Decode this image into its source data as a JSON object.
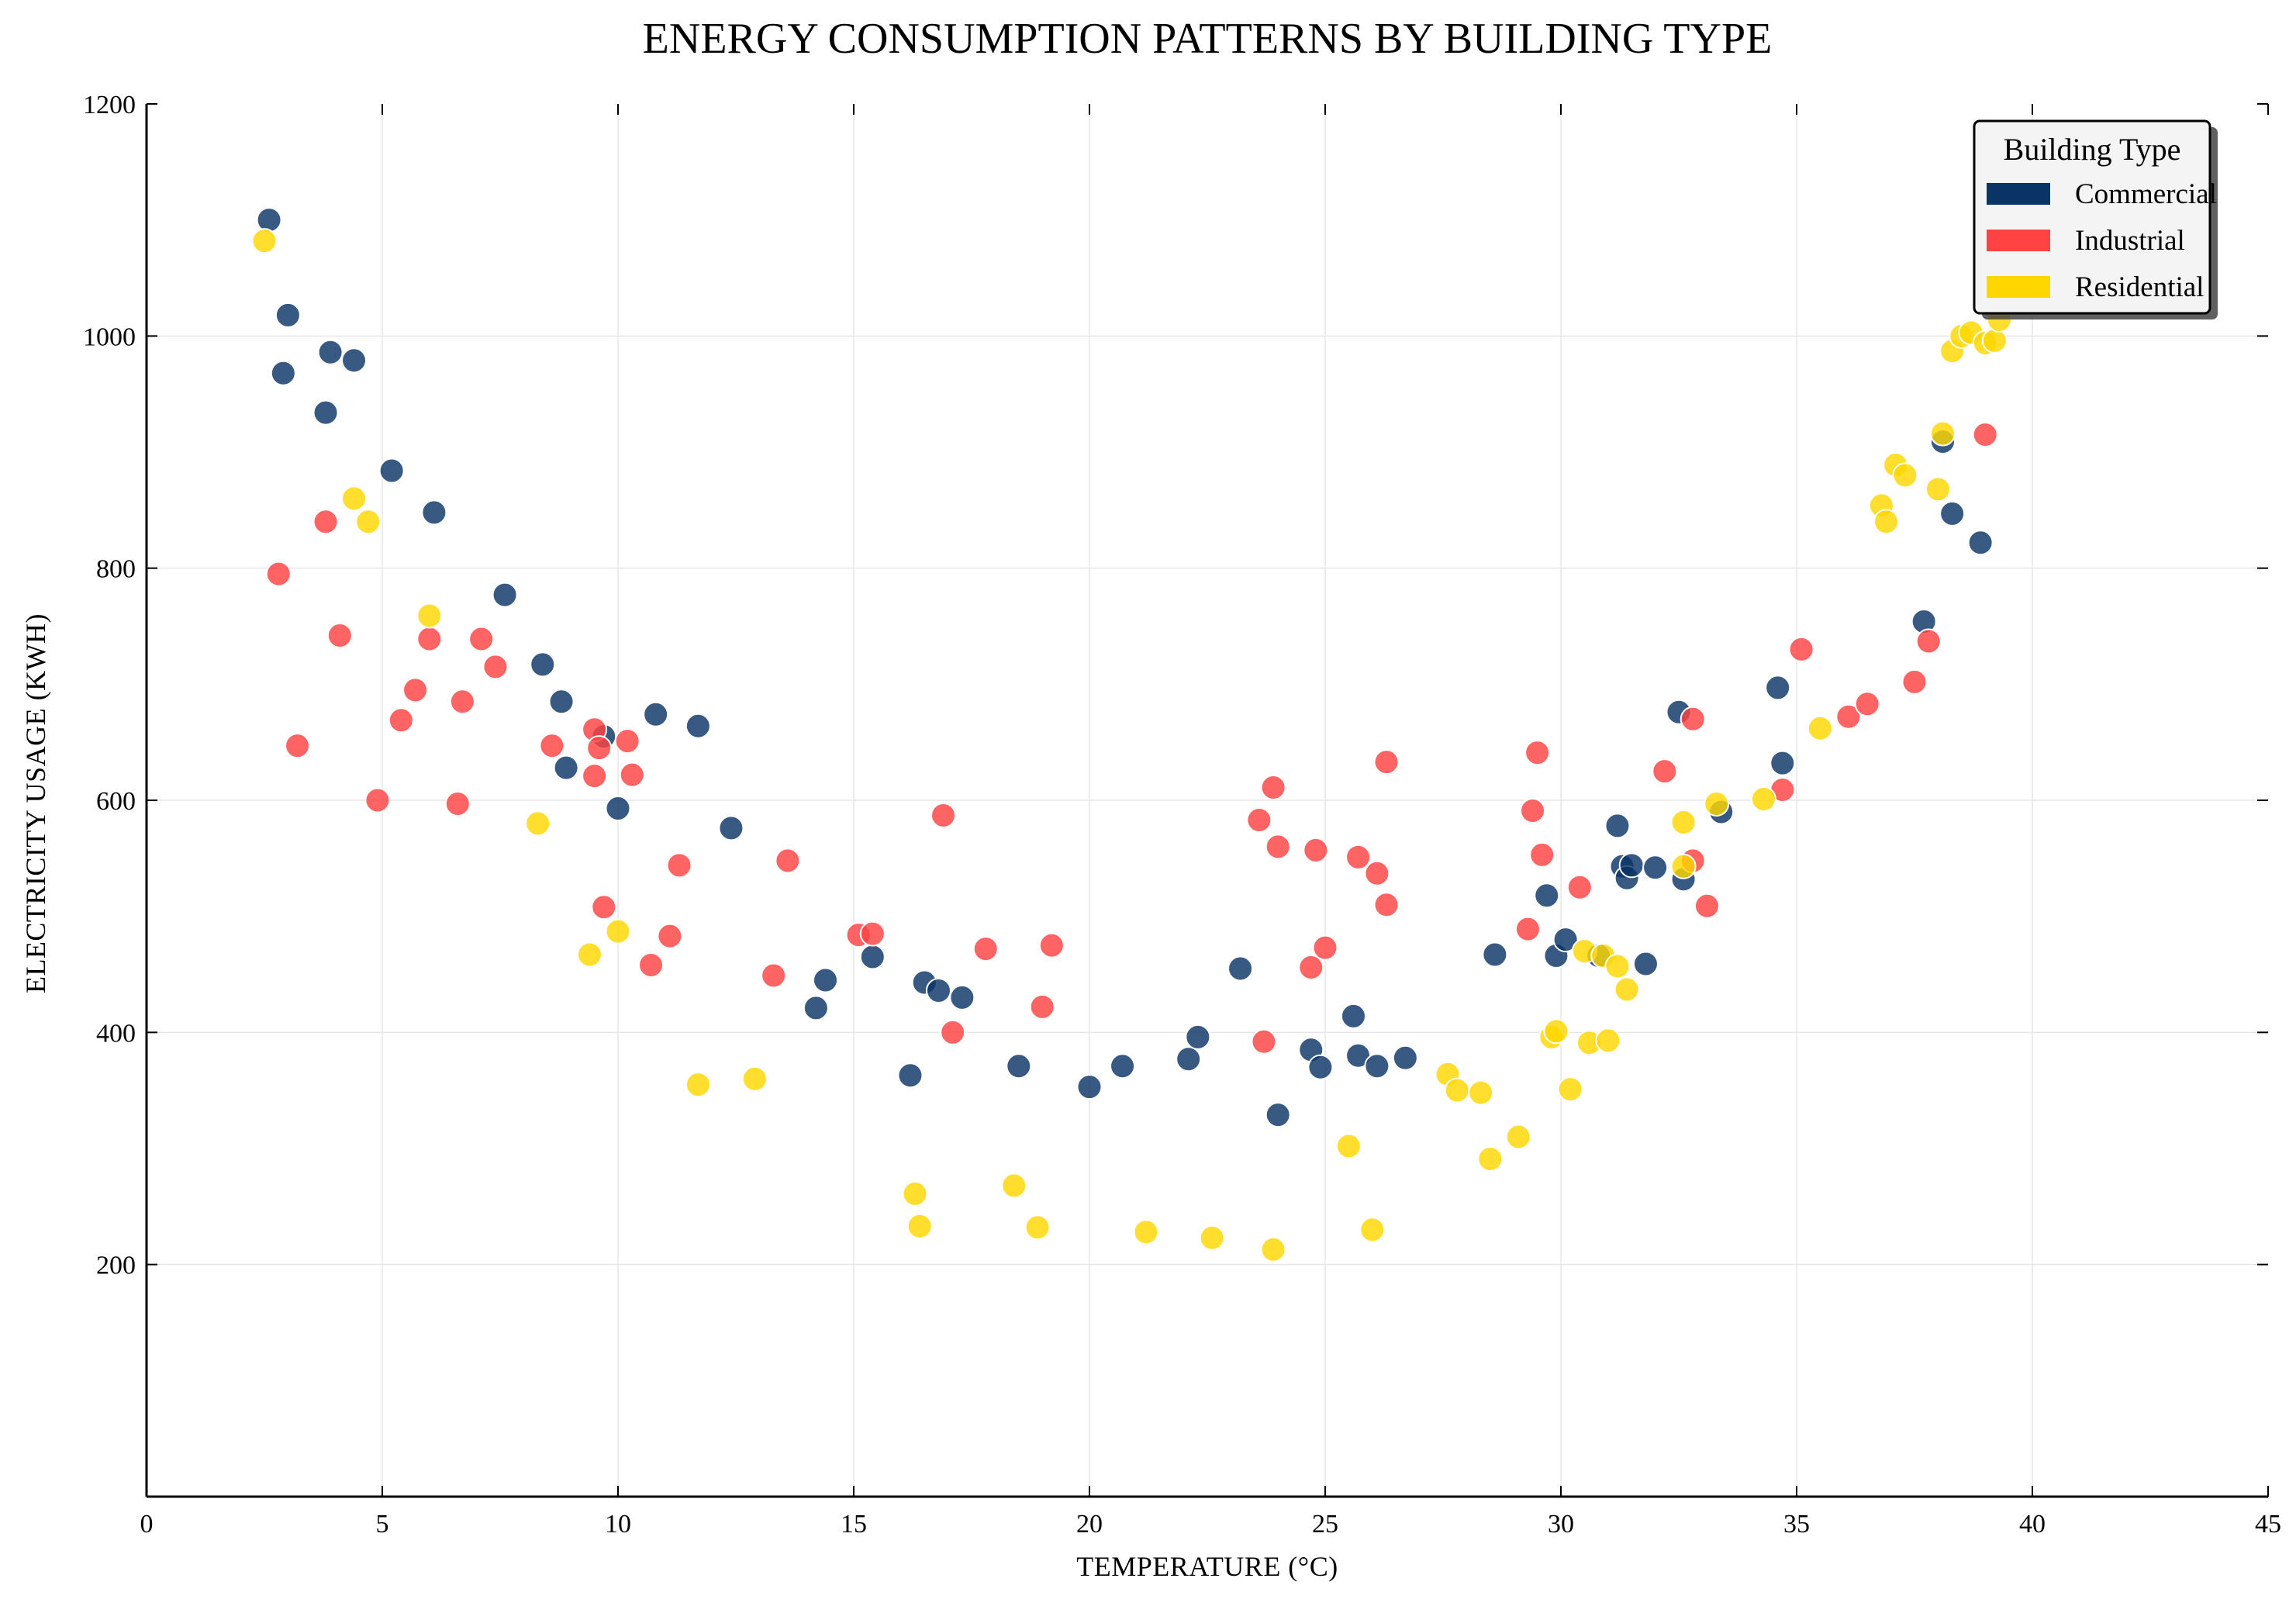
{
  "chart_data": {
    "type": "scatter",
    "title": "ENERGY CONSUMPTION PATTERNS BY BUILDING TYPE",
    "xlabel": "TEMPERATURE (°C)",
    "ylabel": "ELECTRICITY USAGE (KWH)",
    "xlim": [
      0,
      45
    ],
    "ylim": [
      0,
      1200
    ],
    "xticks": [
      0,
      5,
      10,
      15,
      20,
      25,
      30,
      35,
      40,
      45
    ],
    "yticks": [
      200,
      400,
      600,
      800,
      1000,
      1200
    ],
    "grid": true,
    "legend": {
      "title": "Building Type",
      "position": "top-right"
    },
    "series": [
      {
        "name": "Commercial",
        "color": "#0b3466",
        "points": [
          [
            2.6,
            1100
          ],
          [
            3.0,
            1018
          ],
          [
            2.9,
            968
          ],
          [
            3.9,
            986
          ],
          [
            4.4,
            979
          ],
          [
            3.8,
            934
          ],
          [
            5.2,
            884
          ],
          [
            6.1,
            848
          ],
          [
            7.6,
            777
          ],
          [
            8.4,
            717
          ],
          [
            8.8,
            685
          ],
          [
            8.9,
            628
          ],
          [
            9.7,
            655
          ],
          [
            10.0,
            593
          ],
          [
            10.8,
            674
          ],
          [
            11.7,
            664
          ],
          [
            12.4,
            576
          ],
          [
            14.2,
            421
          ],
          [
            14.4,
            445
          ],
          [
            15.4,
            465
          ],
          [
            16.2,
            363
          ],
          [
            16.5,
            443
          ],
          [
            16.8,
            436
          ],
          [
            17.3,
            430
          ],
          [
            18.5,
            371
          ],
          [
            20.0,
            353
          ],
          [
            20.7,
            371
          ],
          [
            22.1,
            377
          ],
          [
            22.3,
            396
          ],
          [
            23.2,
            455
          ],
          [
            24.0,
            329
          ],
          [
            24.7,
            385
          ],
          [
            24.9,
            370
          ],
          [
            25.6,
            414
          ],
          [
            25.7,
            380
          ],
          [
            26.1,
            371
          ],
          [
            26.7,
            378
          ],
          [
            28.6,
            467
          ],
          [
            29.7,
            518
          ],
          [
            29.9,
            466
          ],
          [
            30.1,
            480
          ],
          [
            30.8,
            466
          ],
          [
            31.2,
            578
          ],
          [
            31.3,
            543
          ],
          [
            31.4,
            533
          ],
          [
            31.5,
            544
          ],
          [
            31.8,
            459
          ],
          [
            32.0,
            542
          ],
          [
            32.5,
            676
          ],
          [
            32.6,
            532
          ],
          [
            33.4,
            590
          ],
          [
            34.6,
            697
          ],
          [
            34.7,
            632
          ],
          [
            37.7,
            754
          ],
          [
            38.1,
            909
          ],
          [
            38.3,
            847
          ],
          [
            38.9,
            822
          ]
        ]
      },
      {
        "name": "Industrial",
        "color": "#ff4242",
        "points": [
          [
            2.8,
            795
          ],
          [
            3.2,
            647
          ],
          [
            3.8,
            840
          ],
          [
            4.1,
            742
          ],
          [
            4.9,
            600
          ],
          [
            5.4,
            669
          ],
          [
            5.7,
            695
          ],
          [
            6.0,
            739
          ],
          [
            6.6,
            597
          ],
          [
            6.7,
            685
          ],
          [
            7.1,
            739
          ],
          [
            7.4,
            715
          ],
          [
            8.6,
            647
          ],
          [
            9.5,
            661
          ],
          [
            9.6,
            645
          ],
          [
            9.5,
            621
          ],
          [
            9.7,
            508
          ],
          [
            10.2,
            651
          ],
          [
            10.3,
            622
          ],
          [
            10.7,
            458
          ],
          [
            11.1,
            483
          ],
          [
            11.3,
            544
          ],
          [
            13.3,
            449
          ],
          [
            13.6,
            548
          ],
          [
            15.1,
            484
          ],
          [
            15.4,
            485
          ],
          [
            16.9,
            587
          ],
          [
            17.1,
            400
          ],
          [
            17.8,
            472
          ],
          [
            19.0,
            422
          ],
          [
            19.2,
            475
          ],
          [
            23.6,
            583
          ],
          [
            23.7,
            392
          ],
          [
            23.9,
            611
          ],
          [
            24.0,
            560
          ],
          [
            24.7,
            456
          ],
          [
            24.8,
            557
          ],
          [
            25.0,
            473
          ],
          [
            25.7,
            551
          ],
          [
            26.1,
            537
          ],
          [
            26.3,
            633
          ],
          [
            26.3,
            510
          ],
          [
            29.3,
            489
          ],
          [
            29.4,
            591
          ],
          [
            29.5,
            641
          ],
          [
            29.6,
            553
          ],
          [
            30.4,
            525
          ],
          [
            32.2,
            625
          ],
          [
            32.8,
            548
          ],
          [
            32.8,
            670
          ],
          [
            33.1,
            509
          ],
          [
            34.7,
            609
          ],
          [
            35.1,
            730
          ],
          [
            36.1,
            672
          ],
          [
            36.5,
            683
          ],
          [
            37.5,
            702
          ],
          [
            37.8,
            737
          ],
          [
            39.0,
            915
          ]
        ]
      },
      {
        "name": "Residential",
        "color": "#ffd700",
        "points": [
          [
            2.5,
            1082
          ],
          [
            4.4,
            860
          ],
          [
            4.7,
            840
          ],
          [
            6.0,
            759
          ],
          [
            8.3,
            580
          ],
          [
            9.4,
            467
          ],
          [
            10.0,
            487
          ],
          [
            11.7,
            355
          ],
          [
            12.9,
            360
          ],
          [
            16.3,
            261
          ],
          [
            16.4,
            233
          ],
          [
            18.4,
            268
          ],
          [
            18.9,
            232
          ],
          [
            21.2,
            228
          ],
          [
            22.6,
            223
          ],
          [
            23.9,
            213
          ],
          [
            25.5,
            302
          ],
          [
            26.0,
            230
          ],
          [
            27.6,
            364
          ],
          [
            27.8,
            350
          ],
          [
            28.3,
            348
          ],
          [
            28.5,
            291
          ],
          [
            29.1,
            310
          ],
          [
            29.8,
            396
          ],
          [
            29.9,
            401
          ],
          [
            30.2,
            351
          ],
          [
            30.5,
            470
          ],
          [
            30.6,
            391
          ],
          [
            30.9,
            466
          ],
          [
            31.0,
            393
          ],
          [
            31.2,
            457
          ],
          [
            31.4,
            437
          ],
          [
            32.6,
            581
          ],
          [
            32.6,
            543
          ],
          [
            33.3,
            597
          ],
          [
            34.3,
            601
          ],
          [
            35.5,
            662
          ],
          [
            36.8,
            854
          ],
          [
            36.9,
            840
          ],
          [
            37.1,
            889
          ],
          [
            37.3,
            880
          ],
          [
            38.0,
            868
          ],
          [
            38.1,
            916
          ],
          [
            38.3,
            987
          ],
          [
            38.5,
            1000
          ],
          [
            38.7,
            1003
          ],
          [
            39.0,
            994
          ],
          [
            39.2,
            996
          ],
          [
            39.3,
            1014
          ]
        ]
      }
    ]
  }
}
